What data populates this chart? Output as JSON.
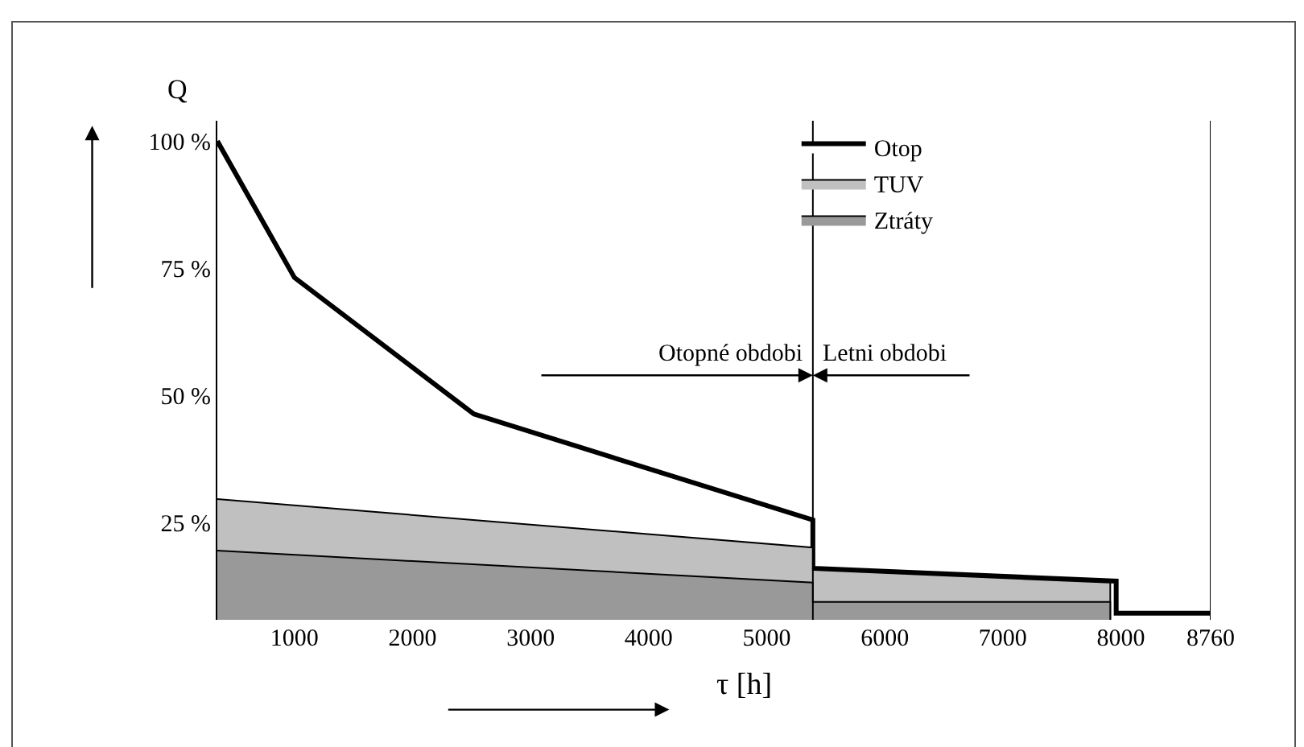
{
  "chart_data": {
    "type": "area",
    "xlabel": "τ [h]",
    "ylabel": "Q",
    "xlim": [
      347,
      8760
    ],
    "xticks": [
      1000,
      2000,
      3000,
      4000,
      5000,
      6000,
      7000,
      8000,
      8760
    ],
    "ylim": [
      6,
      104
    ],
    "yticks": [
      {
        "value": 25,
        "label": "25 %"
      },
      {
        "value": 50,
        "label": "50 %"
      },
      {
        "value": 75,
        "label": "75 %"
      },
      {
        "value": 100,
        "label": "100 %"
      }
    ],
    "series": [
      {
        "name": "Otop",
        "color": "#ffffff",
        "x": [
          347,
          1000,
          2520,
          5391,
          5391,
          7960,
          7960,
          8760
        ],
        "values": [
          100,
          73.2,
          46.4,
          25.6,
          16.1,
          13.6,
          7.3,
          7.3
        ]
      },
      {
        "name": "TUV",
        "color": "#c0c0c0",
        "x": [
          347,
          5391,
          5391,
          7910,
          7910
        ],
        "values": [
          29.7,
          20.2,
          15.8,
          13.3,
          6
        ]
      },
      {
        "name": "Ztráty",
        "color": "#999999",
        "x": [
          347,
          5391,
          5391,
          7910,
          7910
        ],
        "values": [
          19.6,
          13.3,
          9.5,
          9.5,
          6
        ]
      }
    ],
    "ref_lines": [
      {
        "axis": "x",
        "value": 5391
      },
      {
        "axis": "x",
        "value": 8760
      }
    ],
    "annotations": [
      "Otopné obdobi",
      "Letni obdobi"
    ],
    "legend": "top",
    "grid": false
  }
}
